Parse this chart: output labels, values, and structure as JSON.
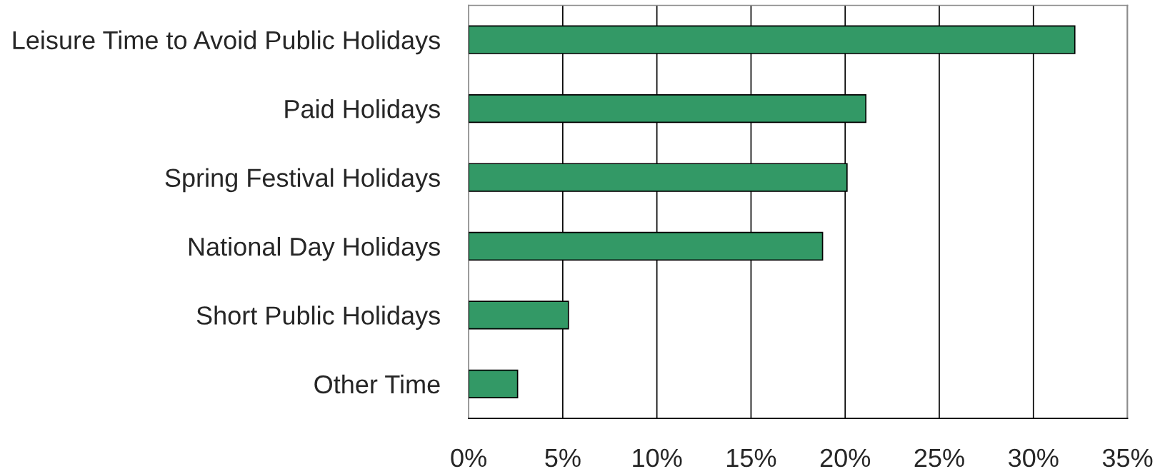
{
  "chart_data": {
    "type": "bar",
    "orientation": "horizontal",
    "categories": [
      "Leisure Time to Avoid Public Holidays",
      "Paid Holidays",
      "Spring Festival Holidays",
      "National Day Holidays",
      "Short Public Holidays",
      "Other Time"
    ],
    "values": [
      32.2,
      21.1,
      20.1,
      18.8,
      5.3,
      2.6
    ],
    "color": "#339966",
    "xlim": [
      0,
      35
    ],
    "xticks": [
      {
        "value": 0,
        "label": "0%"
      },
      {
        "value": 5,
        "label": "5%"
      },
      {
        "value": 10,
        "label": "10%"
      },
      {
        "value": 15,
        "label": "15%"
      },
      {
        "value": 20,
        "label": "20%"
      },
      {
        "value": 25,
        "label": "25%"
      },
      {
        "value": 30,
        "label": "30%"
      },
      {
        "value": 35,
        "label": "35%"
      }
    ],
    "grid": "x"
  }
}
